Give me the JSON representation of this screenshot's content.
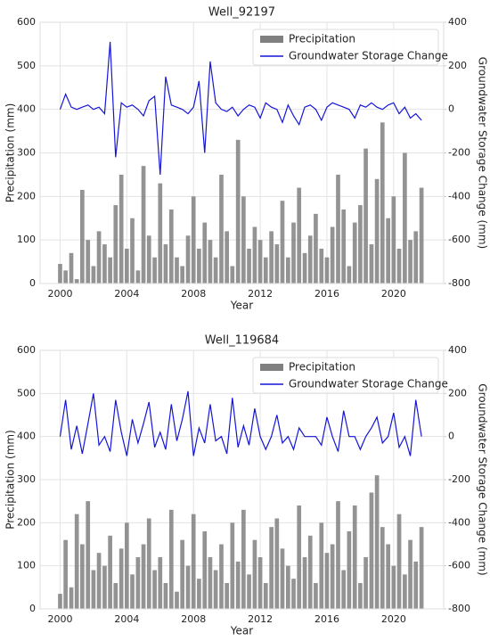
{
  "chart_data": [
    {
      "type": "combo",
      "title": "Well_92197",
      "x_label": "Year",
      "y_label": "Precipitation (mm)",
      "y2_label": "Groundwater Storage Change (mm)",
      "x": [
        2000,
        2000.33,
        2000.67,
        2001,
        2001.33,
        2001.67,
        2002,
        2002.33,
        2002.67,
        2003,
        2003.33,
        2003.67,
        2004,
        2004.33,
        2004.67,
        2005,
        2005.33,
        2005.67,
        2006,
        2006.33,
        2006.67,
        2007,
        2007.33,
        2007.67,
        2008,
        2008.33,
        2008.67,
        2009,
        2009.33,
        2009.67,
        2010,
        2010.33,
        2010.67,
        2011,
        2011.33,
        2011.67,
        2012,
        2012.33,
        2012.67,
        2013,
        2013.33,
        2013.67,
        2014,
        2014.33,
        2014.67,
        2015,
        2015.33,
        2015.67,
        2016,
        2016.33,
        2016.67,
        2017,
        2017.33,
        2017.67,
        2018,
        2018.33,
        2018.67,
        2019,
        2019.33,
        2019.67,
        2020,
        2020.33,
        2020.67,
        2021,
        2021.33,
        2021.67
      ],
      "series": [
        {
          "name": "Precipitation",
          "type": "bar",
          "color": "#808080",
          "values": [
            45,
            30,
            70,
            10,
            215,
            100,
            40,
            120,
            90,
            60,
            180,
            250,
            80,
            150,
            30,
            270,
            110,
            60,
            230,
            90,
            170,
            60,
            40,
            110,
            200,
            80,
            140,
            100,
            60,
            250,
            120,
            40,
            330,
            200,
            80,
            130,
            100,
            60,
            120,
            90,
            190,
            60,
            140,
            220,
            70,
            110,
            160,
            80,
            60,
            130,
            250,
            170,
            40,
            140,
            180,
            310,
            90,
            240,
            370,
            150,
            200,
            80,
            300,
            100,
            120,
            220
          ]
        },
        {
          "name": "Groundwater Storage Change",
          "type": "line",
          "axis": "y2",
          "color": "#1515d8",
          "values": [
            0,
            70,
            10,
            0,
            10,
            20,
            0,
            10,
            -20,
            310,
            -220,
            30,
            10,
            20,
            0,
            -30,
            40,
            60,
            -300,
            150,
            20,
            10,
            0,
            -20,
            10,
            130,
            -200,
            220,
            30,
            0,
            -10,
            10,
            -30,
            0,
            20,
            10,
            -40,
            30,
            10,
            0,
            -60,
            20,
            -30,
            -70,
            10,
            20,
            0,
            -50,
            10,
            30,
            20,
            10,
            0,
            -40,
            20,
            10,
            30,
            10,
            0,
            20,
            30,
            -20,
            10,
            -40,
            -20,
            -50
          ]
        }
      ],
      "xlim": [
        1998.8,
        2023.0
      ],
      "xticks": [
        2000,
        2004,
        2008,
        2012,
        2016,
        2020
      ],
      "ylim": [
        0,
        600
      ],
      "yticks": [
        0,
        100,
        200,
        300,
        400,
        500,
        600
      ],
      "y2lim": [
        -800,
        400
      ],
      "y2ticks": [
        -800,
        -600,
        -400,
        -200,
        0,
        200,
        400
      ],
      "grid": true,
      "legend": "upper right"
    },
    {
      "type": "combo",
      "title": "Well_119684",
      "x_label": "Year",
      "y_label": "Precipitation (mm)",
      "y2_label": "Groundwater Storage Change (mm)",
      "x": [
        2000,
        2000.33,
        2000.67,
        2001,
        2001.33,
        2001.67,
        2002,
        2002.33,
        2002.67,
        2003,
        2003.33,
        2003.67,
        2004,
        2004.33,
        2004.67,
        2005,
        2005.33,
        2005.67,
        2006,
        2006.33,
        2006.67,
        2007,
        2007.33,
        2007.67,
        2008,
        2008.33,
        2008.67,
        2009,
        2009.33,
        2009.67,
        2010,
        2010.33,
        2010.67,
        2011,
        2011.33,
        2011.67,
        2012,
        2012.33,
        2012.67,
        2013,
        2013.33,
        2013.67,
        2014,
        2014.33,
        2014.67,
        2015,
        2015.33,
        2015.67,
        2016,
        2016.33,
        2016.67,
        2017,
        2017.33,
        2017.67,
        2018,
        2018.33,
        2018.67,
        2019,
        2019.33,
        2019.67,
        2020,
        2020.33,
        2020.67,
        2021,
        2021.33,
        2021.67
      ],
      "series": [
        {
          "name": "Precipitation",
          "type": "bar",
          "color": "#808080",
          "values": [
            35,
            160,
            50,
            220,
            150,
            250,
            90,
            130,
            100,
            170,
            60,
            140,
            200,
            80,
            120,
            150,
            210,
            90,
            120,
            60,
            230,
            40,
            160,
            100,
            220,
            70,
            180,
            120,
            90,
            150,
            60,
            200,
            110,
            230,
            80,
            160,
            120,
            60,
            190,
            210,
            140,
            100,
            70,
            240,
            120,
            170,
            60,
            200,
            130,
            150,
            250,
            90,
            180,
            240,
            60,
            120,
            270,
            310,
            190,
            150,
            100,
            220,
            80,
            160,
            110,
            190
          ]
        },
        {
          "name": "Groundwater Storage Change",
          "type": "line",
          "axis": "y2",
          "color": "#1515d8",
          "values": [
            0,
            170,
            -60,
            50,
            -80,
            60,
            200,
            -40,
            0,
            -70,
            170,
            20,
            -90,
            80,
            -30,
            60,
            160,
            -50,
            20,
            -60,
            150,
            -20,
            80,
            210,
            -90,
            40,
            -30,
            150,
            -20,
            0,
            -80,
            180,
            -50,
            50,
            -40,
            130,
            0,
            -60,
            0,
            100,
            -30,
            0,
            -60,
            40,
            0,
            0,
            0,
            -40,
            90,
            0,
            -70,
            120,
            0,
            0,
            -60,
            0,
            40,
            90,
            -30,
            0,
            110,
            -50,
            0,
            -90,
            170,
            0
          ]
        }
      ],
      "xlim": [
        1998.8,
        2023.0
      ],
      "xticks": [
        2000,
        2004,
        2008,
        2012,
        2016,
        2020
      ],
      "ylim": [
        0,
        600
      ],
      "yticks": [
        0,
        100,
        200,
        300,
        400,
        500,
        600
      ],
      "y2lim": [
        -800,
        400
      ],
      "y2ticks": [
        -800,
        -600,
        -400,
        -200,
        0,
        200,
        400
      ],
      "grid": true,
      "legend": "upper right"
    }
  ]
}
